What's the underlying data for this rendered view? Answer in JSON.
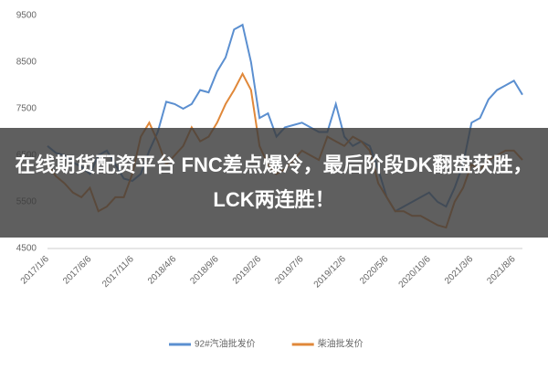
{
  "chart_data": {
    "type": "line",
    "categories": [
      "2017/1/6",
      null,
      null,
      null,
      null,
      "2017/6/6",
      null,
      null,
      null,
      null,
      "2017/11/6",
      null,
      null,
      null,
      null,
      "2018/4/6",
      null,
      null,
      null,
      null,
      "2018/9/6",
      null,
      null,
      null,
      null,
      "2019/2/6",
      null,
      null,
      null,
      null,
      "2019/7/6",
      null,
      null,
      null,
      null,
      "2019/12/6",
      null,
      null,
      null,
      null,
      "2020/5/6",
      null,
      null,
      null,
      null,
      "2020/10/6",
      null,
      null,
      null,
      null,
      "2021/3/6",
      null,
      null,
      null,
      null,
      "2021/8/6",
      null
    ],
    "series": [
      {
        "name": "92#汽油批发价",
        "color": "#5b8fd0",
        "values": [
          6700,
          6550,
          6500,
          6350,
          6250,
          6100,
          6500,
          6600,
          6300,
          6000,
          5950,
          6100,
          6600,
          7000,
          7650,
          7600,
          7500,
          7600,
          7900,
          7850,
          8300,
          8600,
          9200,
          9300,
          8500,
          7300,
          7400,
          6900,
          7100,
          7150,
          7200,
          7100,
          7000,
          7000,
          7600,
          6900,
          6700,
          6800,
          6700,
          6200,
          5600,
          5300,
          5400,
          5500,
          5600,
          5700,
          5500,
          5400,
          5800,
          6300,
          7200,
          7300,
          7700,
          7900,
          8000,
          8100,
          7800
        ]
      },
      {
        "name": "柴油批发价",
        "color": "#e0883a",
        "values": [
          6300,
          6050,
          5900,
          5700,
          5600,
          5800,
          5300,
          5400,
          5600,
          5600,
          6100,
          6900,
          7200,
          6800,
          6300,
          6500,
          6700,
          7100,
          6800,
          6900,
          7200,
          7600,
          7900,
          8250,
          7900,
          6700,
          6300,
          6100,
          6200,
          6400,
          6600,
          6500,
          6400,
          6900,
          6800,
          6700,
          6900,
          6800,
          6600,
          5900,
          5600,
          5300,
          5300,
          5200,
          5200,
          5100,
          5000,
          4950,
          5500,
          5800,
          6300,
          6200,
          6400,
          6500,
          6600,
          6600,
          6400
        ]
      }
    ],
    "ylim": [
      4500,
      9500
    ],
    "yticks": [
      4500,
      5500,
      6500,
      7500,
      8500,
      9500
    ],
    "grid": false,
    "legend": "bottom"
  },
  "overlay": {
    "title": "在线期货配资平台 FNC差点爆冷，最后阶段DK翻盘获胜，LCK两连胜！"
  }
}
